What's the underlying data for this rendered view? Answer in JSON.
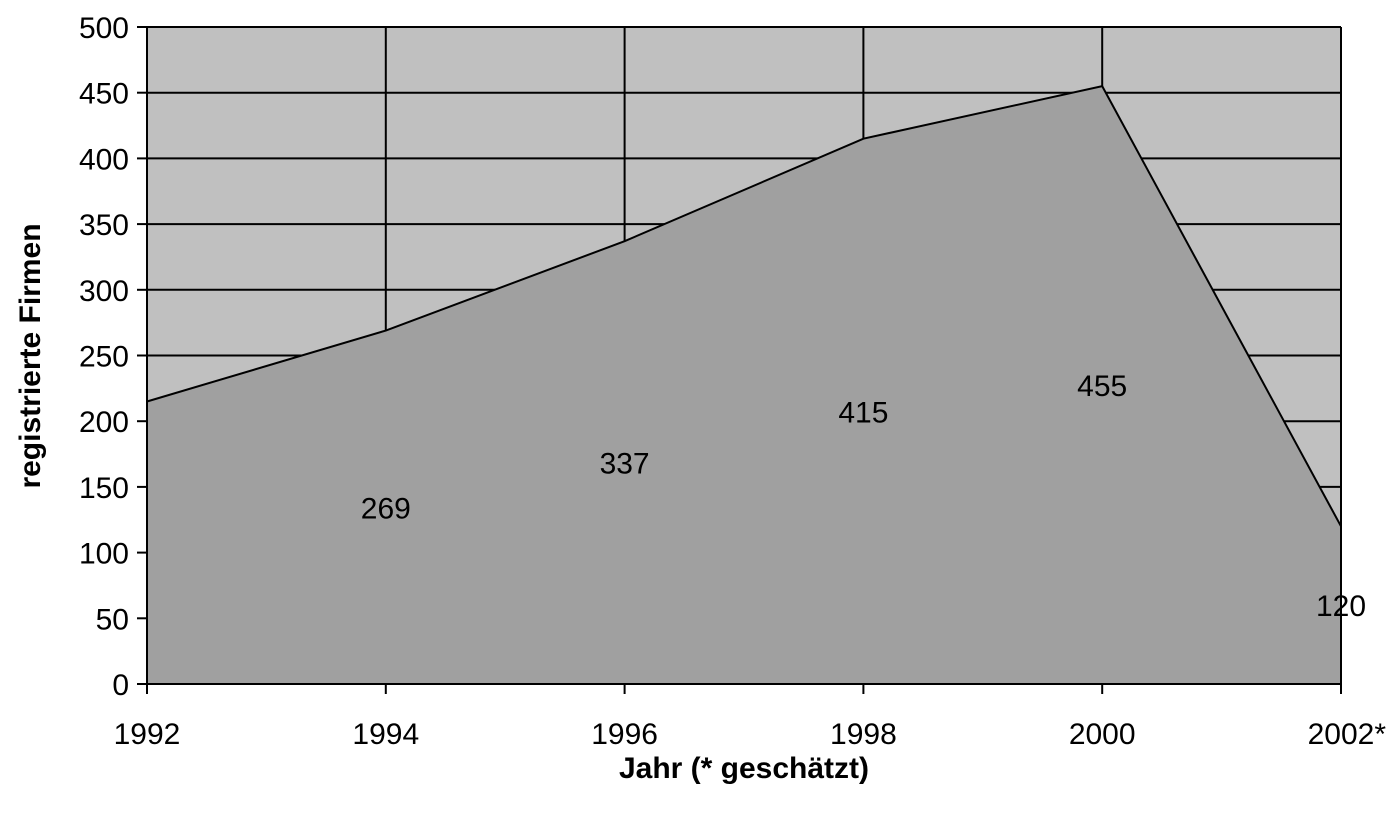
{
  "chart_data": {
    "type": "area",
    "title": "",
    "xlabel": "Jahr (* geschätzt)",
    "ylabel": "registrierte Firmen",
    "x": [
      "1992",
      "1994",
      "1996",
      "1998",
      "2000",
      "2002*"
    ],
    "series": [
      {
        "values": [
          215,
          269,
          337,
          415,
          455,
          120
        ]
      }
    ],
    "data_labels": [
      "",
      "269",
      "337",
      "415",
      "455",
      "120"
    ],
    "ylim": [
      0,
      500
    ],
    "yticks": [
      "0",
      "50",
      "100",
      "150",
      "200",
      "250",
      "300",
      "350",
      "400",
      "450",
      "500"
    ],
    "grid": true,
    "legend": "none",
    "colors": {
      "plot_background": "#c0c0c0",
      "area_fill": "#a0a0a0",
      "lines": "#000000"
    }
  }
}
